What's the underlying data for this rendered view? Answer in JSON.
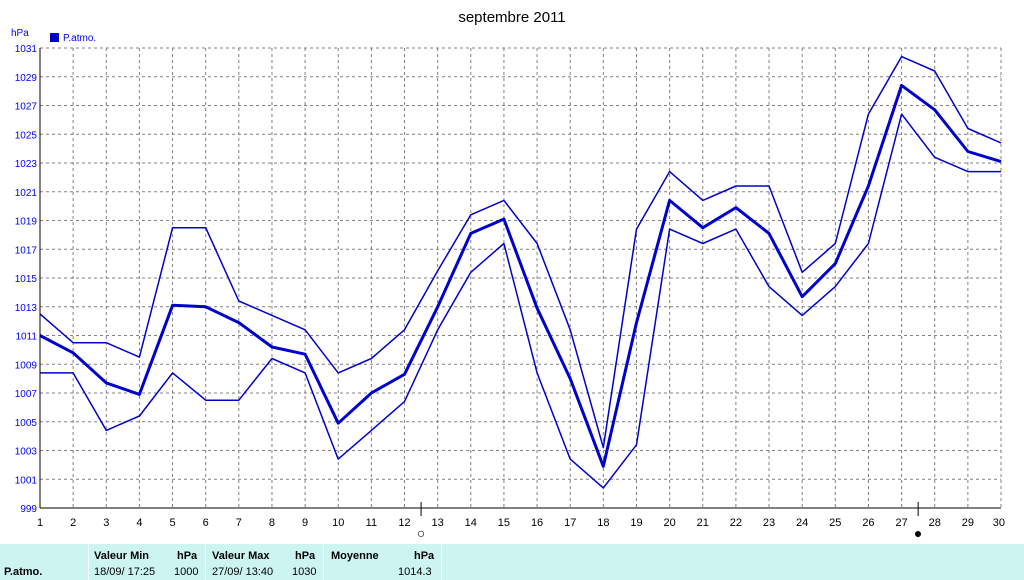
{
  "chart_data": {
    "type": "line",
    "title": "septembre 2011",
    "ylabel": "hPa",
    "ylim": [
      999,
      1031
    ],
    "yticks": [
      999,
      1001,
      1003,
      1005,
      1007,
      1009,
      1011,
      1013,
      1015,
      1017,
      1019,
      1021,
      1023,
      1025,
      1027,
      1029,
      1031
    ],
    "x": [
      1,
      2,
      3,
      4,
      5,
      6,
      7,
      8,
      9,
      10,
      11,
      12,
      13,
      14,
      15,
      16,
      17,
      18,
      19,
      20,
      21,
      22,
      23,
      24,
      25,
      26,
      27,
      28,
      29,
      30
    ],
    "legend": "P.atmo.",
    "series": [
      {
        "role": "max",
        "values": [
          1012.5,
          1010.5,
          1010.5,
          1009.5,
          1018.5,
          1018.5,
          1013.4,
          1012.4,
          1011.4,
          1008.4,
          1009.4,
          1011.4,
          1015.5,
          1019.4,
          1020.4,
          1017.4,
          1011.4,
          1003.2,
          1018.4,
          1022.4,
          1020.4,
          1021.4,
          1021.4,
          1015.4,
          1017.4,
          1026.4,
          1030.4,
          1029.4,
          1025.4,
          1024.4
        ]
      },
      {
        "role": "mean",
        "values": [
          1011.0,
          1009.8,
          1007.7,
          1006.9,
          1013.1,
          1013.0,
          1011.9,
          1010.2,
          1009.7,
          1004.9,
          1007.0,
          1008.3,
          1013.0,
          1018.1,
          1019.1,
          1012.9,
          1008.0,
          1001.9,
          1011.9,
          1020.4,
          1018.5,
          1019.9,
          1018.1,
          1013.7,
          1016.0,
          1021.4,
          1028.4,
          1026.7,
          1023.8,
          1023.1
        ]
      },
      {
        "role": "min",
        "values": [
          1008.4,
          1008.4,
          1004.4,
          1005.4,
          1008.4,
          1006.5,
          1006.5,
          1009.4,
          1008.4,
          1002.4,
          1004.4,
          1006.4,
          1011.4,
          1015.4,
          1017.4,
          1008.4,
          1002.4,
          1000.4,
          1003.4,
          1018.4,
          1017.4,
          1018.4,
          1014.4,
          1012.4,
          1014.4,
          1017.4,
          1026.4,
          1023.4,
          1022.4,
          1022.4
        ]
      }
    ],
    "moon_phases": [
      {
        "day": 12.5,
        "phase": "full",
        "symbol": "○"
      },
      {
        "day": 27.5,
        "phase": "new",
        "symbol": "●"
      }
    ],
    "grid": true,
    "legend_position": "top-left"
  },
  "colors": {
    "series": "#0000cc",
    "axis_text": "#0000ff",
    "grid": "#808080",
    "footer_bg": "#ccf5f2"
  },
  "footer": {
    "row_label": "P.atmo.",
    "min_header": "Valeur Min",
    "unit_header": "hPa",
    "min_date": "18/09/  17:25",
    "min_value": "1000",
    "max_header": "Valeur Max",
    "max_date": "27/09/  13:40",
    "max_value": "1030",
    "mean_header": "Moyenne",
    "mean_value": "1014.3"
  }
}
